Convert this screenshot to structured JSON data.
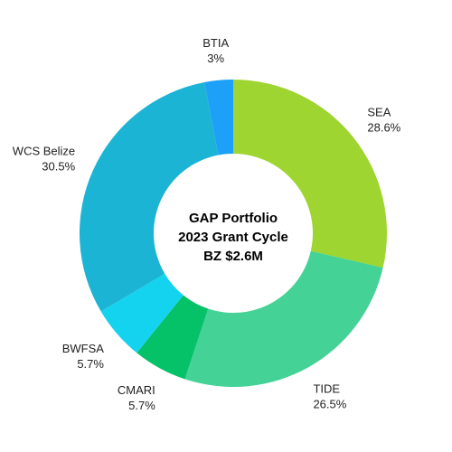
{
  "chart_data": {
    "type": "pie",
    "subtype": "donut",
    "center_label": [
      "GAP Portfolio",
      "2023 Grant Cycle",
      "BZ $2.6M"
    ],
    "slices": [
      {
        "label": "SEA",
        "value_text": "28.6%",
        "value": 28.6,
        "color": "#9ed530"
      },
      {
        "label": "TIDE",
        "value_text": "26.5%",
        "value": 26.5,
        "color": "#44d296"
      },
      {
        "label": "CMARI",
        "value_text": "5.7%",
        "value": 5.7,
        "color": "#05c168"
      },
      {
        "label": "BWFSA",
        "value_text": "5.7%",
        "value": 5.7,
        "color": "#14d3ee"
      },
      {
        "label": "WCS Belize",
        "value_text": "30.5%",
        "value": 30.5,
        "color": "#1cb4d4"
      },
      {
        "label": "BTIA",
        "value_text": "3%",
        "value": 3,
        "color": "#1da0f8"
      }
    ]
  }
}
